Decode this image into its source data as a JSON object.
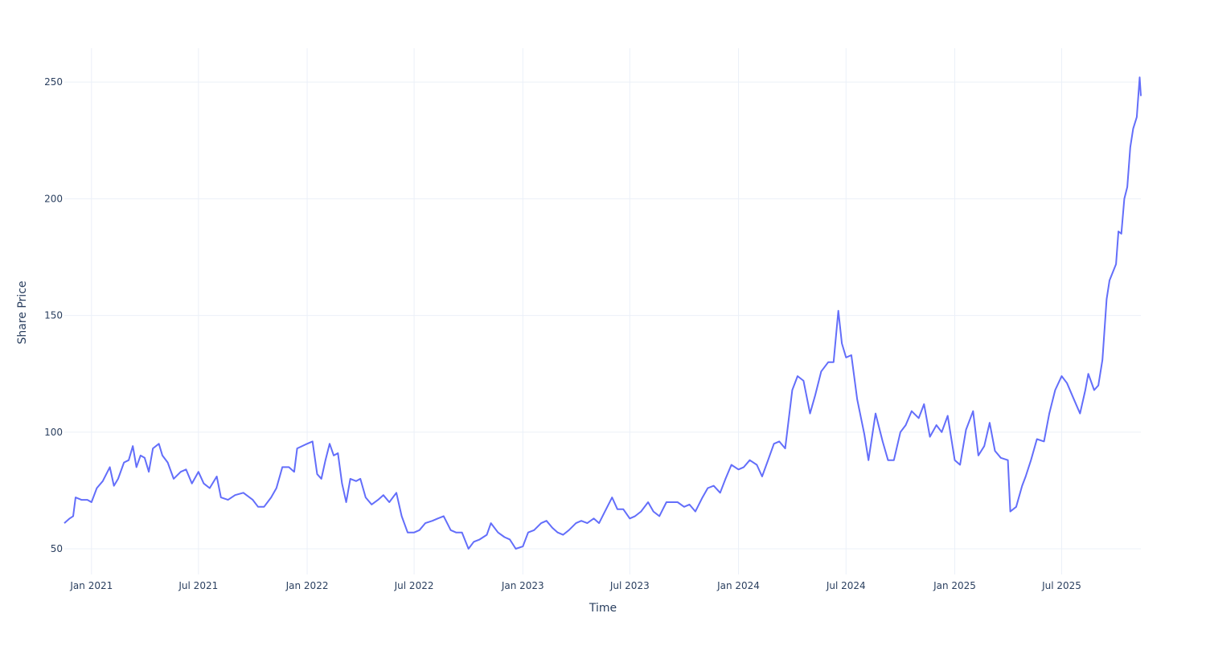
{
  "chart_data": {
    "type": "line",
    "title": "",
    "xlabel": "Time",
    "ylabel": "Share Price",
    "xlim": [
      "2020-11-16",
      "2025-11-12"
    ],
    "ylim": [
      39,
      264.5
    ],
    "grid": true,
    "legend": "none",
    "line_color": "#636efa",
    "x_ticks": [
      {
        "date": "2021-01-01",
        "label": "Jan 2021"
      },
      {
        "date": "2021-07-01",
        "label": "Jul 2021"
      },
      {
        "date": "2022-01-01",
        "label": "Jan 2022"
      },
      {
        "date": "2022-07-01",
        "label": "Jul 2022"
      },
      {
        "date": "2023-01-01",
        "label": "Jan 2023"
      },
      {
        "date": "2023-07-01",
        "label": "Jul 2023"
      },
      {
        "date": "2024-01-01",
        "label": "Jan 2024"
      },
      {
        "date": "2024-07-01",
        "label": "Jul 2024"
      },
      {
        "date": "2025-01-01",
        "label": "Jan 2025"
      },
      {
        "date": "2025-07-01",
        "label": "Jul 2025"
      }
    ],
    "y_ticks": [
      {
        "value": 50,
        "label": "50"
      },
      {
        "value": 100,
        "label": "100"
      },
      {
        "value": 150,
        "label": "150"
      },
      {
        "value": 200,
        "label": "200"
      },
      {
        "value": 250,
        "label": "250"
      }
    ],
    "series": [
      {
        "name": "Share Price",
        "points": [
          [
            "2020-11-16",
            61
          ],
          [
            "2020-11-25",
            63
          ],
          [
            "2020-12-01",
            64
          ],
          [
            "2020-12-05",
            72
          ],
          [
            "2020-12-15",
            71
          ],
          [
            "2020-12-25",
            71
          ],
          [
            "2021-01-01",
            70
          ],
          [
            "2021-01-10",
            76
          ],
          [
            "2021-01-20",
            79
          ],
          [
            "2021-02-01",
            85
          ],
          [
            "2021-02-08",
            77
          ],
          [
            "2021-02-15",
            80
          ],
          [
            "2021-02-25",
            87
          ],
          [
            "2021-03-05",
            88
          ],
          [
            "2021-03-12",
            94
          ],
          [
            "2021-03-18",
            85
          ],
          [
            "2021-03-25",
            90
          ],
          [
            "2021-04-01",
            89
          ],
          [
            "2021-04-08",
            83
          ],
          [
            "2021-04-15",
            93
          ],
          [
            "2021-04-25",
            95
          ],
          [
            "2021-05-01",
            90
          ],
          [
            "2021-05-10",
            87
          ],
          [
            "2021-05-20",
            80
          ],
          [
            "2021-06-01",
            83
          ],
          [
            "2021-06-10",
            84
          ],
          [
            "2021-06-20",
            78
          ],
          [
            "2021-07-01",
            83
          ],
          [
            "2021-07-10",
            78
          ],
          [
            "2021-07-20",
            76
          ],
          [
            "2021-08-01",
            81
          ],
          [
            "2021-08-08",
            72
          ],
          [
            "2021-08-20",
            71
          ],
          [
            "2021-09-01",
            73
          ],
          [
            "2021-09-15",
            74
          ],
          [
            "2021-10-01",
            71
          ],
          [
            "2021-10-10",
            68
          ],
          [
            "2021-10-20",
            68
          ],
          [
            "2021-11-01",
            72
          ],
          [
            "2021-11-10",
            76
          ],
          [
            "2021-11-20",
            85
          ],
          [
            "2021-12-01",
            85
          ],
          [
            "2021-12-10",
            83
          ],
          [
            "2021-12-15",
            93
          ],
          [
            "2022-01-01",
            95
          ],
          [
            "2022-01-10",
            96
          ],
          [
            "2022-01-18",
            82
          ],
          [
            "2022-01-25",
            80
          ],
          [
            "2022-02-01",
            88
          ],
          [
            "2022-02-08",
            95
          ],
          [
            "2022-02-15",
            90
          ],
          [
            "2022-02-22",
            91
          ],
          [
            "2022-03-01",
            78
          ],
          [
            "2022-03-08",
            70
          ],
          [
            "2022-03-15",
            80
          ],
          [
            "2022-03-25",
            79
          ],
          [
            "2022-04-01",
            80
          ],
          [
            "2022-04-10",
            72
          ],
          [
            "2022-04-20",
            69
          ],
          [
            "2022-05-01",
            71
          ],
          [
            "2022-05-10",
            73
          ],
          [
            "2022-05-20",
            70
          ],
          [
            "2022-06-01",
            74
          ],
          [
            "2022-06-10",
            64
          ],
          [
            "2022-06-20",
            57
          ],
          [
            "2022-07-01",
            57
          ],
          [
            "2022-07-10",
            58
          ],
          [
            "2022-07-20",
            61
          ],
          [
            "2022-08-01",
            62
          ],
          [
            "2022-08-10",
            63
          ],
          [
            "2022-08-20",
            64
          ],
          [
            "2022-09-01",
            58
          ],
          [
            "2022-09-10",
            57
          ],
          [
            "2022-09-20",
            57
          ],
          [
            "2022-10-01",
            50
          ],
          [
            "2022-10-10",
            53
          ],
          [
            "2022-10-20",
            54
          ],
          [
            "2022-11-01",
            56
          ],
          [
            "2022-11-08",
            61
          ],
          [
            "2022-11-20",
            57
          ],
          [
            "2022-12-01",
            55
          ],
          [
            "2022-12-10",
            54
          ],
          [
            "2022-12-20",
            50
          ],
          [
            "2023-01-01",
            51
          ],
          [
            "2023-01-10",
            57
          ],
          [
            "2023-01-20",
            58
          ],
          [
            "2023-02-01",
            61
          ],
          [
            "2023-02-10",
            62
          ],
          [
            "2023-02-20",
            59
          ],
          [
            "2023-03-01",
            57
          ],
          [
            "2023-03-10",
            56
          ],
          [
            "2023-03-20",
            58
          ],
          [
            "2023-04-01",
            61
          ],
          [
            "2023-04-10",
            62
          ],
          [
            "2023-04-20",
            61
          ],
          [
            "2023-05-01",
            63
          ],
          [
            "2023-05-10",
            61
          ],
          [
            "2023-05-20",
            66
          ],
          [
            "2023-06-01",
            72
          ],
          [
            "2023-06-10",
            67
          ],
          [
            "2023-06-20",
            67
          ],
          [
            "2023-07-01",
            63
          ],
          [
            "2023-07-10",
            64
          ],
          [
            "2023-07-20",
            66
          ],
          [
            "2023-08-01",
            70
          ],
          [
            "2023-08-10",
            66
          ],
          [
            "2023-08-20",
            64
          ],
          [
            "2023-09-01",
            70
          ],
          [
            "2023-09-10",
            70
          ],
          [
            "2023-09-20",
            70
          ],
          [
            "2023-10-01",
            68
          ],
          [
            "2023-10-10",
            69
          ],
          [
            "2023-10-20",
            66
          ],
          [
            "2023-11-01",
            72
          ],
          [
            "2023-11-10",
            76
          ],
          [
            "2023-11-20",
            77
          ],
          [
            "2023-12-01",
            74
          ],
          [
            "2023-12-10",
            80
          ],
          [
            "2023-12-20",
            86
          ],
          [
            "2024-01-01",
            84
          ],
          [
            "2024-01-10",
            85
          ],
          [
            "2024-01-20",
            88
          ],
          [
            "2024-02-01",
            86
          ],
          [
            "2024-02-10",
            81
          ],
          [
            "2024-02-20",
            88
          ],
          [
            "2024-03-01",
            95
          ],
          [
            "2024-03-10",
            96
          ],
          [
            "2024-03-20",
            93
          ],
          [
            "2024-04-01",
            118
          ],
          [
            "2024-04-10",
            124
          ],
          [
            "2024-04-20",
            122
          ],
          [
            "2024-05-01",
            108
          ],
          [
            "2024-05-10",
            116
          ],
          [
            "2024-05-20",
            126
          ],
          [
            "2024-06-01",
            130
          ],
          [
            "2024-06-10",
            130
          ],
          [
            "2024-06-18",
            152
          ],
          [
            "2024-06-24",
            138
          ],
          [
            "2024-07-01",
            132
          ],
          [
            "2024-07-10",
            133
          ],
          [
            "2024-07-20",
            114
          ],
          [
            "2024-08-01",
            99
          ],
          [
            "2024-08-08",
            88
          ],
          [
            "2024-08-20",
            108
          ],
          [
            "2024-09-01",
            96
          ],
          [
            "2024-09-10",
            88
          ],
          [
            "2024-09-20",
            88
          ],
          [
            "2024-10-01",
            100
          ],
          [
            "2024-10-10",
            103
          ],
          [
            "2024-10-20",
            109
          ],
          [
            "2024-11-01",
            106
          ],
          [
            "2024-11-10",
            112
          ],
          [
            "2024-11-20",
            98
          ],
          [
            "2024-12-01",
            103
          ],
          [
            "2024-12-10",
            100
          ],
          [
            "2024-12-20",
            107
          ],
          [
            "2025-01-01",
            88
          ],
          [
            "2025-01-10",
            86
          ],
          [
            "2025-01-20",
            101
          ],
          [
            "2025-02-01",
            109
          ],
          [
            "2025-02-10",
            90
          ],
          [
            "2025-02-20",
            94
          ],
          [
            "2025-03-01",
            104
          ],
          [
            "2025-03-10",
            92
          ],
          [
            "2025-03-20",
            89
          ],
          [
            "2025-04-01",
            88
          ],
          [
            "2025-04-05",
            66
          ],
          [
            "2025-04-15",
            68
          ],
          [
            "2025-04-25",
            77
          ],
          [
            "2025-05-01",
            81
          ],
          [
            "2025-05-10",
            88
          ],
          [
            "2025-05-20",
            97
          ],
          [
            "2025-06-01",
            96
          ],
          [
            "2025-06-10",
            108
          ],
          [
            "2025-06-20",
            118
          ],
          [
            "2025-07-01",
            124
          ],
          [
            "2025-07-10",
            121
          ],
          [
            "2025-07-20",
            115
          ],
          [
            "2025-08-01",
            108
          ],
          [
            "2025-08-10",
            118
          ],
          [
            "2025-08-15",
            125
          ],
          [
            "2025-08-25",
            118
          ],
          [
            "2025-09-01",
            120
          ],
          [
            "2025-09-08",
            131
          ],
          [
            "2025-09-15",
            157
          ],
          [
            "2025-09-20",
            165
          ],
          [
            "2025-10-01",
            172
          ],
          [
            "2025-10-05",
            186
          ],
          [
            "2025-10-10",
            185
          ],
          [
            "2025-10-15",
            200
          ],
          [
            "2025-10-20",
            205
          ],
          [
            "2025-10-25",
            222
          ],
          [
            "2025-10-30",
            230
          ],
          [
            "2025-11-05",
            235
          ],
          [
            "2025-11-10",
            252
          ],
          [
            "2025-11-12",
            244
          ]
        ]
      }
    ]
  }
}
